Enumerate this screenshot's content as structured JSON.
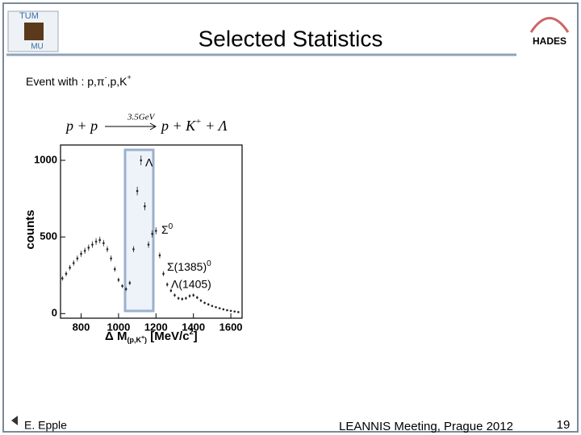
{
  "slide": {
    "title": "Selected Statistics",
    "event_parts": [
      "Event with : p,π",
      "-",
      ",p,K",
      "+"
    ],
    "logos": {
      "tum": "TUM",
      "mu": "MU",
      "hades": "HADES"
    },
    "author": "E. Epple",
    "meeting": "LEANNIS Meeting, Prague 2012",
    "page": "19"
  },
  "chart_data": {
    "type": "scatter",
    "reaction": {
      "left": "p + p",
      "energy": "3.5GeV",
      "right": "p + K",
      "charge": "+",
      "tail": " + Λ"
    },
    "y_label": "counts",
    "x_label_parts": [
      "Δ M",
      "(p,K",
      "+",
      ")",
      " [MeV/c",
      "2",
      "]"
    ],
    "annotations": {
      "lambda": "Λ",
      "sigma": "Σ",
      "sigma_sup": "0",
      "sigma1385": "Σ(1385)",
      "sigma1385_sup": "0",
      "lambda1405": "Λ(1405)"
    },
    "x": [
      700,
      720,
      740,
      760,
      780,
      800,
      820,
      840,
      860,
      880,
      900,
      920,
      940,
      960,
      980,
      1000,
      1020,
      1040,
      1060,
      1080,
      1100,
      1120,
      1140,
      1160,
      1180,
      1200,
      1220,
      1240,
      1260,
      1280,
      1300,
      1320,
      1340,
      1360,
      1380,
      1400,
      1420,
      1440,
      1460,
      1480,
      1500,
      1520,
      1540,
      1560,
      1580,
      1600,
      1620,
      1640
    ],
    "values": [
      230,
      260,
      300,
      330,
      360,
      390,
      410,
      430,
      450,
      470,
      480,
      460,
      420,
      360,
      290,
      220,
      180,
      160,
      200,
      420,
      800,
      1000,
      700,
      450,
      520,
      540,
      380,
      260,
      190,
      150,
      120,
      100,
      95,
      100,
      115,
      120,
      105,
      85,
      70,
      60,
      50,
      42,
      35,
      28,
      22,
      18,
      14,
      10
    ],
    "errors": [
      15,
      16,
      17,
      18,
      19,
      20,
      20,
      21,
      21,
      22,
      22,
      21,
      20,
      19,
      17,
      15,
      13,
      13,
      14,
      20,
      28,
      32,
      26,
      21,
      23,
      23,
      19,
      16,
      14,
      12,
      11,
      10,
      10,
      10,
      11,
      11,
      10,
      9,
      8,
      8,
      7,
      6,
      6,
      5,
      5,
      4,
      4,
      3
    ],
    "color": "#222222",
    "xlim": [
      690,
      1660
    ],
    "ylim": [
      -30,
      1100
    ],
    "xticks": [
      800,
      1000,
      1200,
      1400,
      1600
    ],
    "yticks": [
      0,
      500,
      1000
    ]
  }
}
